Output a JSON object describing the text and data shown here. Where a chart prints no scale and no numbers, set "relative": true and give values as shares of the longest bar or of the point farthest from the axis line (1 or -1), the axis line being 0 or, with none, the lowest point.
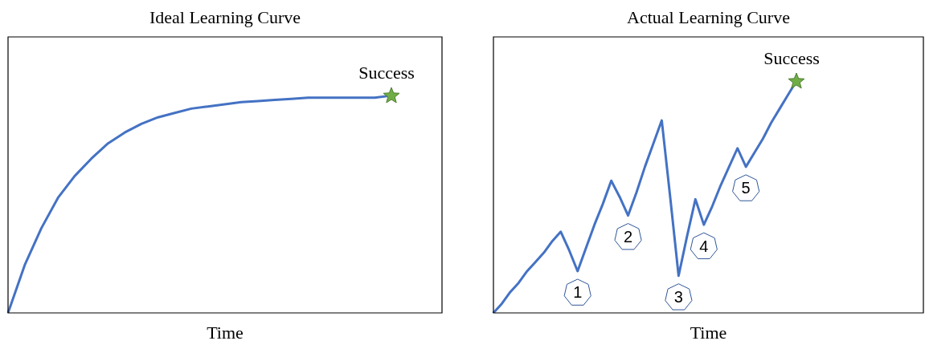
{
  "chart_data": [
    {
      "type": "line",
      "title": "Ideal Learning Curve",
      "xlabel": "Time",
      "relative": true,
      "tick_labels": false,
      "categories": [
        null,
        null,
        null,
        null,
        null,
        null,
        null,
        null,
        null,
        null,
        null,
        null,
        null,
        null,
        null,
        null,
        null,
        null,
        null,
        null,
        null,
        null,
        null,
        null
      ],
      "series": [
        {
          "color": "#4472c4",
          "values": [
            0,
            0.22,
            0.39,
            0.53,
            0.63,
            0.71,
            0.78,
            0.83,
            0.87,
            0.9,
            0.92,
            0.94,
            0.95,
            0.96,
            0.97,
            0.975,
            0.98,
            0.985,
            0.99,
            0.99,
            0.99,
            0.99,
            0.99,
            1
          ]
        }
      ],
      "annotations": [
        {
          "text": "Success",
          "y": 1
        }
      ]
    },
    {
      "type": "line",
      "title": "Actual Learning Curve",
      "xlabel": "Time",
      "relative": true,
      "tick_labels": false,
      "categories": [
        null,
        null,
        null,
        null,
        null,
        null,
        null,
        null,
        null,
        null,
        null,
        null,
        null,
        null,
        null,
        null,
        null,
        null,
        null,
        null,
        null,
        null,
        null,
        null,
        null,
        null,
        null,
        null,
        null,
        null,
        null,
        null,
        null,
        null,
        null,
        null,
        null
      ],
      "series": [
        {
          "color": "#4472c4",
          "values": [
            0,
            0.04,
            0.09,
            0.13,
            0.18,
            0.22,
            0.26,
            0.31,
            0.35,
            0.27,
            0.18,
            0.28,
            0.38,
            0.47,
            0.57,
            0.5,
            0.42,
            0.52,
            0.63,
            0.73,
            0.83,
            0.5,
            0.16,
            0.33,
            0.49,
            0.38,
            0.46,
            0.55,
            0.63,
            0.71,
            0.63,
            0.69,
            0.75,
            0.82,
            0.88,
            0.94,
            1
          ]
        }
      ],
      "annotations": [
        {
          "text": "1",
          "y": 0.18
        },
        {
          "text": "2",
          "y": 0.42
        },
        {
          "text": "3",
          "y": 0.16
        },
        {
          "text": "4",
          "y": 0.38
        },
        {
          "text": "5",
          "y": 0.63
        },
        {
          "text": "Success",
          "y": 1
        }
      ]
    }
  ]
}
